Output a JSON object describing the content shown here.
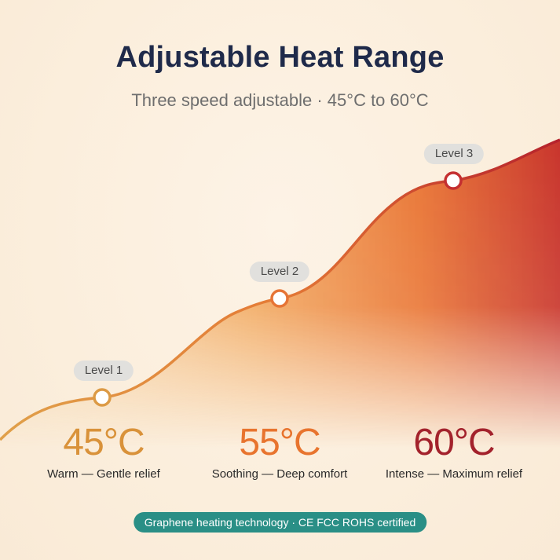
{
  "header": {
    "title": "Adjustable Heat Range",
    "subtitle": "Three speed adjustable · 45°C to 60°C"
  },
  "levels": [
    {
      "label": "Level 1",
      "temperature": "45°C",
      "description": "Warm — Gentle relief",
      "color": "#d9923a"
    },
    {
      "label": "Level 2",
      "temperature": "55°C",
      "description": "Soothing — Deep comfort",
      "color": "#e8742e"
    },
    {
      "label": "Level 3",
      "temperature": "60°C",
      "description": "Intense — Maximum relief",
      "color": "#a3222c"
    }
  ],
  "footer": {
    "badge": "Graphene heating technology · CE FCC ROHS certified"
  },
  "colors": {
    "title": "#1f2a4a",
    "badge_bg": "#2a8f86",
    "curve_start": "#e0a04a",
    "curve_end": "#b5222c"
  }
}
